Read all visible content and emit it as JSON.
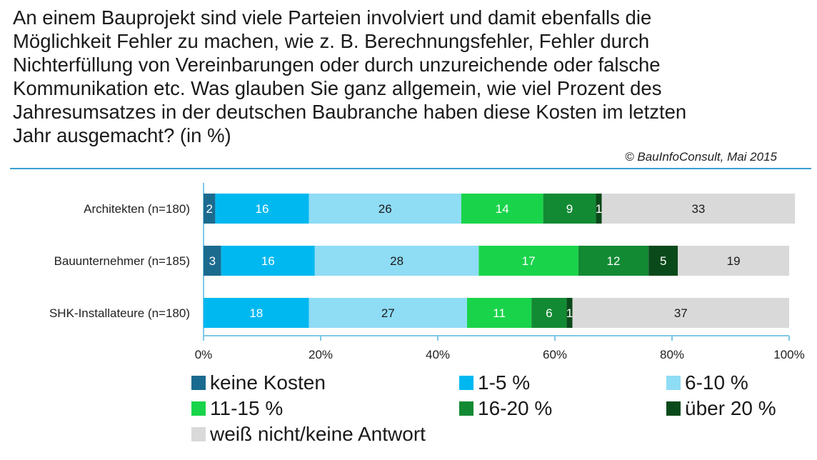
{
  "header": {
    "question": "An einem Bauprojekt sind viele Parteien involviert und damit ebenfalls die\nMöglichkeit Fehler zu machen, wie z. B. Berechnungsfehler, Fehler durch\nNichterfüllung von Vereinbarungen oder durch unzureichende oder falsche\nKommunikation etc. Was glauben Sie ganz allgemein, wie viel Prozent des\nJahresumsatzes in der deutschen Baubranche haben diese Kosten im letzten\nJahr ausgemacht? (in %)",
    "copyright": "© BauInfoConsult, Mai 2015"
  },
  "chart_data": {
    "type": "bar",
    "orientation": "horizontal",
    "stacked": true,
    "title": "",
    "xlabel": "",
    "ylabel": "",
    "xlim": [
      0,
      100
    ],
    "x_ticks": [
      "0%",
      "20%",
      "40%",
      "60%",
      "80%",
      "100%"
    ],
    "categories": [
      "Architekten (n=180)",
      "Bauunternehmer (n=185)",
      "SHK-Installateure (n=180)"
    ],
    "series": [
      {
        "name": "keine Kosten",
        "color": "#1b6b8f",
        "text_color": "#ffffff",
        "values": [
          2,
          3,
          0
        ]
      },
      {
        "name": "1-5 %",
        "color": "#00b8f0",
        "text_color": "#ffffff",
        "values": [
          16,
          16,
          18
        ]
      },
      {
        "name": "6-10 %",
        "color": "#8fdcf5",
        "text_color": "#1a1a1a",
        "values": [
          26,
          28,
          27
        ]
      },
      {
        "name": "11-15 %",
        "color": "#19d44a",
        "text_color": "#ffffff",
        "values": [
          14,
          17,
          11
        ]
      },
      {
        "name": "16-20 %",
        "color": "#128a33",
        "text_color": "#ffffff",
        "values": [
          9,
          12,
          6
        ]
      },
      {
        "name": "über 20 %",
        "color": "#0a4a1a",
        "text_color": "#ffffff",
        "values": [
          1,
          5,
          1
        ]
      },
      {
        "name": "weiß nicht/keine Antwort",
        "color": "#d9d9d9",
        "text_color": "#1a1a1a",
        "values": [
          33,
          19,
          37
        ]
      }
    ],
    "legend_position": "bottom",
    "grid": false
  }
}
